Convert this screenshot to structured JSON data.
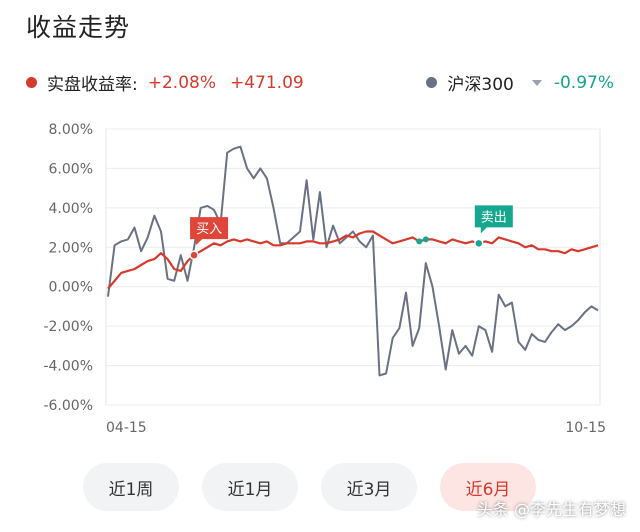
{
  "title": "收益走势",
  "legend": {
    "portfolio": {
      "label": "实盘收益率:",
      "pct": "+2.08%",
      "amount": "+471.09",
      "color": "#d63a2c"
    },
    "benchmark": {
      "label": "沪深300",
      "pct": "-0.97%",
      "color": "#6b7184",
      "pct_color": "#12a58d"
    }
  },
  "tabs": [
    {
      "label": "近1周",
      "active": false
    },
    {
      "label": "近1月",
      "active": false
    },
    {
      "label": "近3月",
      "active": false
    },
    {
      "label": "近6月",
      "active": true
    }
  ],
  "watermark": "头条 @李先生有梦想",
  "chart_data": {
    "type": "line",
    "ylim": [
      -6,
      8
    ],
    "y_ticks": [
      "8.00%",
      "6.00%",
      "4.00%",
      "2.00%",
      "0.00%",
      "-2.00%",
      "-4.00%",
      "-6.00%"
    ],
    "x_ticks": [
      "04-15",
      "10-15"
    ],
    "grid": true,
    "series": [
      {
        "name": "实盘收益率",
        "color": "#d63a2c",
        "values": [
          -0.1,
          0.3,
          0.7,
          0.8,
          0.9,
          1.1,
          1.3,
          1.4,
          1.7,
          1.4,
          0.9,
          0.8,
          1.3,
          1.6,
          1.8,
          2.0,
          2.2,
          2.1,
          2.3,
          2.4,
          2.3,
          2.4,
          2.3,
          2.2,
          2.3,
          2.1,
          2.1,
          2.2,
          2.2,
          2.2,
          2.3,
          2.3,
          2.2,
          2.2,
          2.3,
          2.4,
          2.6,
          2.5,
          2.7,
          2.8,
          2.8,
          2.6,
          2.4,
          2.2,
          2.3,
          2.4,
          2.5,
          2.3,
          2.4,
          2.4,
          2.3,
          2.2,
          2.4,
          2.3,
          2.2,
          2.3,
          2.2,
          2.3,
          2.2,
          2.5,
          2.4,
          2.3,
          2.2,
          2.0,
          2.1,
          1.9,
          1.9,
          1.8,
          1.8,
          1.7,
          1.9,
          1.8,
          1.9,
          2.0,
          2.1
        ]
      },
      {
        "name": "沪深300",
        "color": "#6b7184",
        "values": [
          -0.5,
          2.1,
          2.3,
          2.4,
          3.0,
          1.8,
          2.5,
          3.6,
          2.8,
          0.4,
          0.3,
          1.6,
          0.3,
          2.0,
          4.0,
          4.1,
          3.9,
          3.2,
          6.8,
          7.0,
          7.1,
          6.0,
          5.5,
          6.0,
          5.5,
          4.0,
          2.2,
          2.2,
          2.5,
          2.8,
          5.4,
          2.4,
          4.8,
          2.0,
          3.1,
          2.2,
          2.5,
          2.8,
          2.3,
          2.0,
          2.6,
          -4.5,
          -4.4,
          -2.6,
          -2.1,
          -0.3,
          -3.0,
          -2.1,
          1.2,
          0.0,
          -2.0,
          -4.2,
          -2.2,
          -3.4,
          -3.0,
          -3.5,
          -2.0,
          -2.2,
          -3.3,
          -0.4,
          -1.0,
          -0.8,
          -2.8,
          -3.2,
          -2.4,
          -2.7,
          -2.8,
          -2.3,
          -1.9,
          -2.2,
          -2.0,
          -1.7,
          -1.3,
          -1.0,
          -1.2
        ]
      }
    ],
    "annotations": [
      {
        "text": "买入",
        "index": 13,
        "series": 0,
        "color": "#e0453a"
      },
      {
        "text": "卖出",
        "index": 56,
        "series": 0,
        "color": "#16a88f"
      }
    ]
  }
}
